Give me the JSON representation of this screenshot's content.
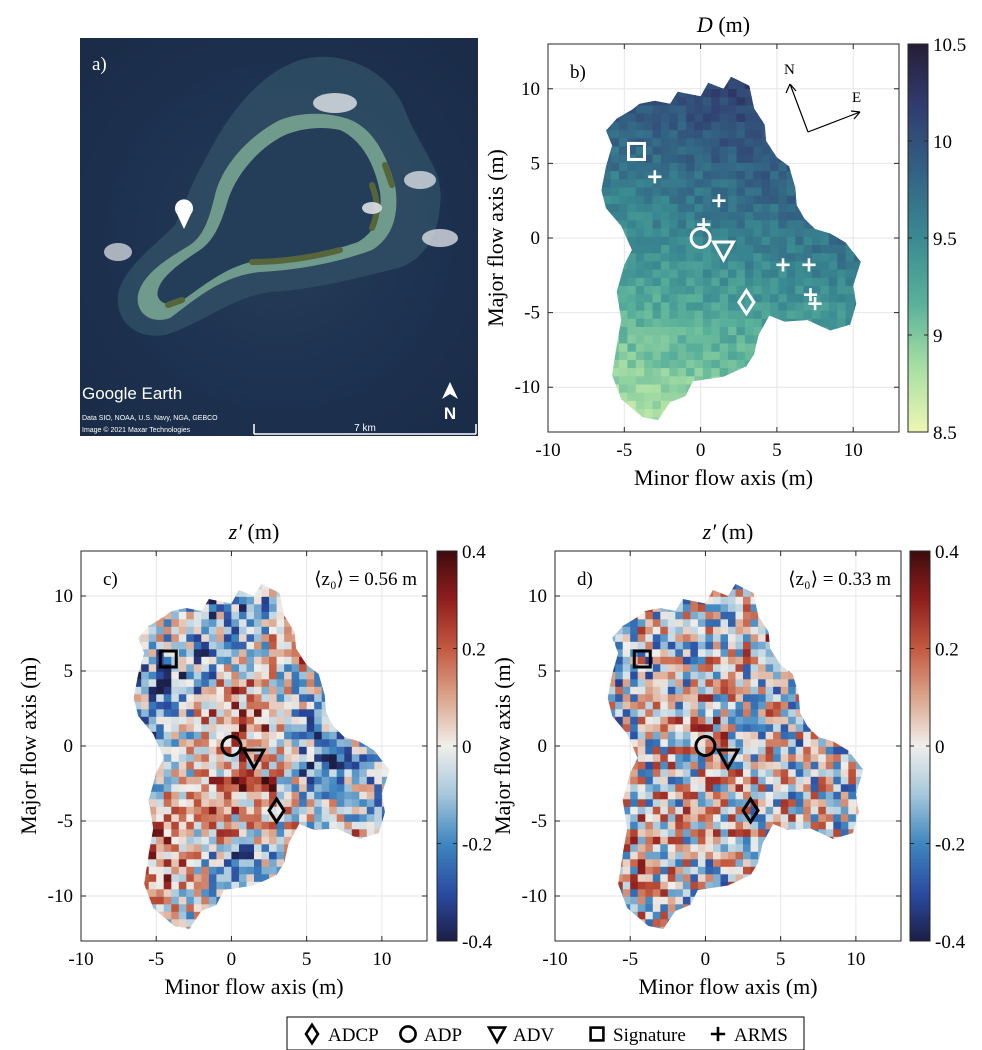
{
  "panel_a": {
    "label": "a)",
    "google_earth": "Google Earth",
    "attribution_1": "Data SIO, NOAA, U.S. Navy, NGA, GEBCO",
    "attribution_2": "Image © 2021 Maxar Technologies",
    "scale_label": "7 km",
    "north_label": "N"
  },
  "chart_data": [
    {
      "type": "heatmap",
      "panel": "b)",
      "title": "D (m)",
      "xlabel": "Minor flow axis (m)",
      "ylabel": "Major flow axis (m)",
      "xlim": [
        -10,
        13
      ],
      "ylim": [
        -13,
        13
      ],
      "xticks": [
        "-10",
        "-5",
        "0",
        "5",
        "10"
      ],
      "yticks": [
        "10",
        "5",
        "0",
        "-5",
        "-10"
      ],
      "colorbar": {
        "min": 8.5,
        "max": 10.5,
        "ticks": [
          "10.5",
          "10",
          "9.5",
          "9",
          "8.5"
        ]
      },
      "compass": {
        "north": "N",
        "east": "E"
      },
      "markers": [
        {
          "instrument": "Signature",
          "x": -4.2,
          "y": 5.8
        },
        {
          "instrument": "ADP",
          "x": 0,
          "y": 0
        },
        {
          "instrument": "ADV",
          "x": 1.5,
          "y": -0.8
        },
        {
          "instrument": "ADCP",
          "x": 3,
          "y": -4.3
        },
        {
          "instrument": "ARMS",
          "x": -3,
          "y": 4.1
        },
        {
          "instrument": "ARMS",
          "x": 1.2,
          "y": 2.5
        },
        {
          "instrument": "ARMS",
          "x": 0.2,
          "y": 0.9
        },
        {
          "instrument": "ARMS",
          "x": 5.4,
          "y": -1.8
        },
        {
          "instrument": "ARMS",
          "x": 7.1,
          "y": -1.8
        },
        {
          "instrument": "ARMS",
          "x": 7.2,
          "y": -3.8
        },
        {
          "instrument": "ARMS",
          "x": 7.5,
          "y": -4.4
        }
      ]
    },
    {
      "type": "heatmap",
      "panel": "c)",
      "title": "z′ (m)",
      "annotation": "⟨z₀⟩ = 0.56 m",
      "xlabel": "Minor flow axis (m)",
      "ylabel": "Major flow axis (m)",
      "xlim": [
        -10,
        13
      ],
      "ylim": [
        -13,
        13
      ],
      "xticks": [
        "-10",
        "-5",
        "0",
        "5",
        "10"
      ],
      "yticks": [
        "10",
        "5",
        "0",
        "-5",
        "-10"
      ],
      "colorbar": {
        "min": -0.4,
        "max": 0.4,
        "ticks": [
          "0.4",
          "0.2",
          "0",
          "-0.2",
          "-0.4"
        ]
      },
      "markers": [
        {
          "instrument": "Signature",
          "x": -4.2,
          "y": 5.8
        },
        {
          "instrument": "ADP",
          "x": 0,
          "y": 0
        },
        {
          "instrument": "ADV",
          "x": 1.5,
          "y": -0.8
        },
        {
          "instrument": "ADCP",
          "x": 3,
          "y": -4.3
        }
      ]
    },
    {
      "type": "heatmap",
      "panel": "d)",
      "title": "z′ (m)",
      "annotation": "⟨z₀⟩ = 0.33 m",
      "xlabel": "Minor flow axis (m)",
      "ylabel": "Major flow axis (m)",
      "xlim": [
        -10,
        13
      ],
      "ylim": [
        -13,
        13
      ],
      "xticks": [
        "-10",
        "-5",
        "0",
        "5",
        "10"
      ],
      "yticks": [
        "10",
        "5",
        "0",
        "-5",
        "-10"
      ],
      "colorbar": {
        "min": -0.4,
        "max": 0.4,
        "ticks": [
          "0.4",
          "0.2",
          "0",
          "-0.2",
          "-0.4"
        ]
      },
      "markers": [
        {
          "instrument": "Signature",
          "x": -4.2,
          "y": 5.8
        },
        {
          "instrument": "ADP",
          "x": 0,
          "y": 0
        },
        {
          "instrument": "ADV",
          "x": 1.5,
          "y": -0.8
        },
        {
          "instrument": "ADCP",
          "x": 3,
          "y": -4.3
        }
      ]
    }
  ],
  "legend": {
    "placement": "bottom-center",
    "items": [
      {
        "symbol": "diamond",
        "label": "ADCP"
      },
      {
        "symbol": "circle",
        "label": "ADP"
      },
      {
        "symbol": "triangle",
        "label": "ADV"
      },
      {
        "symbol": "square",
        "label": "Signature"
      },
      {
        "symbol": "plus",
        "label": "ARMS"
      }
    ]
  },
  "colors": {
    "depth_colormap": [
      "#eef6b4",
      "#a6dea3",
      "#5ab19a",
      "#3a8a92",
      "#336283",
      "#313c6f",
      "#261d37"
    ],
    "diverging_colormap": [
      "#1c1e46",
      "#2a4aa0",
      "#3f86c0",
      "#a9c9dc",
      "#f0eeeb",
      "#dca78f",
      "#c3593f",
      "#8f1d1d",
      "#3d0b0d"
    ],
    "ocean": "#1e3350",
    "reef": "#3b6a75",
    "island": "#5b6a3c"
  }
}
